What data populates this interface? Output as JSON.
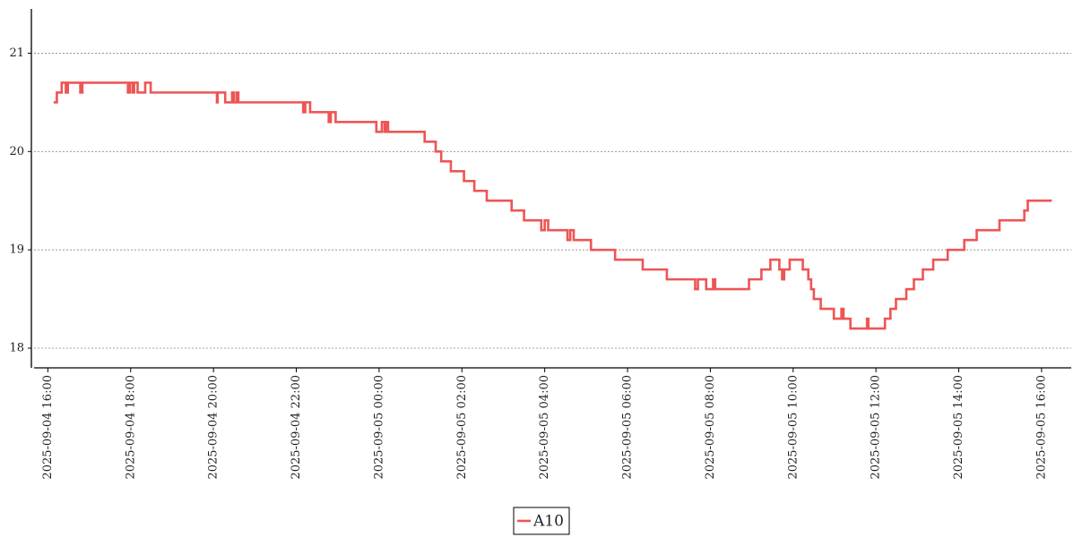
{
  "chart_data": {
    "type": "line",
    "step": "post",
    "color": "#ee5555",
    "grid": true,
    "legend": "bottom",
    "xlim": [
      "2025-09-04 15:40",
      "2025-09-05 16:43"
    ],
    "xticks": [
      "2025-09-04 16:00",
      "2025-09-04 18:00",
      "2025-09-04 20:00",
      "2025-09-04 22:00",
      "2025-09-05 00:00",
      "2025-09-05 02:00",
      "2025-09-05 04:00",
      "2025-09-05 06:00",
      "2025-09-05 08:00",
      "2025-09-05 10:00",
      "2025-09-05 12:00",
      "2025-09-05 14:00",
      "2025-09-05 16:00"
    ],
    "ylim": [
      17.8,
      21.45
    ],
    "yticks": [
      18,
      19,
      20,
      21
    ],
    "x": [
      "2025-09-04 16:10",
      "2025-09-04 16:13",
      "2025-09-04 16:20",
      "2025-09-04 16:26",
      "2025-09-04 16:29",
      "2025-09-04 16:47",
      "2025-09-04 16:50",
      "2025-09-04 17:56",
      "2025-09-04 17:59",
      "2025-09-04 18:03",
      "2025-09-04 18:05",
      "2025-09-04 18:10",
      "2025-09-04 18:21",
      "2025-09-04 18:29",
      "2025-09-04 20:05",
      "2025-09-04 20:06",
      "2025-09-04 20:17",
      "2025-09-04 20:27",
      "2025-09-04 20:30",
      "2025-09-04 20:34",
      "2025-09-04 20:36",
      "2025-09-04 22:10",
      "2025-09-04 22:13",
      "2025-09-04 22:20",
      "2025-09-04 22:47",
      "2025-09-04 22:50",
      "2025-09-04 22:57",
      "2025-09-04 23:56",
      "2025-09-05 00:04",
      "2025-09-05 00:08",
      "2025-09-05 00:10",
      "2025-09-05 00:13",
      "2025-09-05 01:06",
      "2025-09-05 01:22",
      "2025-09-05 01:30",
      "2025-09-05 01:44",
      "2025-09-05 02:03",
      "2025-09-05 02:18",
      "2025-09-05 02:36",
      "2025-09-05 03:12",
      "2025-09-05 03:30",
      "2025-09-05 03:55",
      "2025-09-05 04:00",
      "2025-09-05 04:05",
      "2025-09-05 04:33",
      "2025-09-05 04:37",
      "2025-09-05 04:42",
      "2025-09-05 05:07",
      "2025-09-05 05:42",
      "2025-09-05 06:22",
      "2025-09-05 06:57",
      "2025-09-05 07:38",
      "2025-09-05 07:42",
      "2025-09-05 07:54",
      "2025-09-05 08:04",
      "2025-09-05 08:07",
      "2025-09-05 08:56",
      "2025-09-05 09:14",
      "2025-09-05 09:27",
      "2025-09-05 09:40",
      "2025-09-05 09:44",
      "2025-09-05 09:47",
      "2025-09-05 09:55",
      "2025-09-05 10:14",
      "2025-09-05 10:22",
      "2025-09-05 10:26",
      "2025-09-05 10:30",
      "2025-09-05 10:40",
      "2025-09-05 10:59",
      "2025-09-05 11:10",
      "2025-09-05 11:13",
      "2025-09-05 11:23",
      "2025-09-05 11:47",
      "2025-09-05 11:49",
      "2025-09-05 12:13",
      "2025-09-05 12:21",
      "2025-09-05 12:29",
      "2025-09-05 12:44",
      "2025-09-05 12:55",
      "2025-09-05 13:08",
      "2025-09-05 13:23",
      "2025-09-05 13:44",
      "2025-09-05 14:08",
      "2025-09-05 14:26",
      "2025-09-05 14:59",
      "2025-09-05 15:35",
      "2025-09-05 15:40",
      "2025-09-05 16:13"
    ],
    "series": [
      {
        "name": "A10",
        "color": "#ee5555",
        "values": [
          20.5,
          20.6,
          20.7,
          20.6,
          20.7,
          20.6,
          20.7,
          20.6,
          20.7,
          20.6,
          20.7,
          20.6,
          20.7,
          20.6,
          20.5,
          20.6,
          20.5,
          20.6,
          20.5,
          20.6,
          20.5,
          20.4,
          20.5,
          20.4,
          20.3,
          20.4,
          20.3,
          20.2,
          20.3,
          20.2,
          20.3,
          20.2,
          20.1,
          20.0,
          19.9,
          19.8,
          19.7,
          19.6,
          19.5,
          19.4,
          19.3,
          19.2,
          19.3,
          19.2,
          19.1,
          19.2,
          19.1,
          19.0,
          18.9,
          18.8,
          18.7,
          18.6,
          18.7,
          18.6,
          18.7,
          18.6,
          18.7,
          18.8,
          18.9,
          18.8,
          18.7,
          18.8,
          18.9,
          18.8,
          18.7,
          18.6,
          18.5,
          18.4,
          18.3,
          18.4,
          18.3,
          18.2,
          18.3,
          18.2,
          18.3,
          18.4,
          18.5,
          18.6,
          18.7,
          18.8,
          18.9,
          19.0,
          19.1,
          19.2,
          19.3,
          19.4,
          19.5,
          19.5
        ]
      }
    ]
  }
}
